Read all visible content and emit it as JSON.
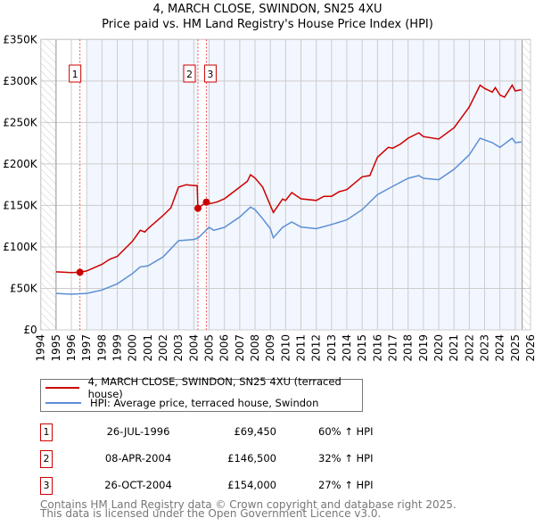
{
  "chart_data": {
    "type": "line",
    "title": "4, MARCH CLOSE, SWINDON, SN25 4XU",
    "subtitle": "Price paid vs. HM Land Registry's House Price Index (HPI)",
    "xlim": [
      1994,
      2026
    ],
    "ylim": [
      0,
      350000
    ],
    "x_ticks": [
      "1994",
      "1995",
      "1996",
      "1997",
      "1998",
      "1999",
      "2000",
      "2001",
      "2002",
      "2003",
      "2004",
      "2005",
      "2006",
      "2007",
      "2008",
      "2009",
      "2010",
      "2011",
      "2012",
      "2013",
      "2014",
      "2015",
      "2016",
      "2017",
      "2018",
      "2019",
      "2020",
      "2021",
      "2022",
      "2023",
      "2024",
      "2025",
      "2026"
    ],
    "y_ticks": [
      {
        "v": 0,
        "label": "£0"
      },
      {
        "v": 50000,
        "label": "£50K"
      },
      {
        "v": 100000,
        "label": "£100K"
      },
      {
        "v": 150000,
        "label": "£150K"
      },
      {
        "v": 200000,
        "label": "£200K"
      },
      {
        "v": 250000,
        "label": "£250K"
      },
      {
        "v": 300000,
        "label": "£300K"
      },
      {
        "v": 350000,
        "label": "£350K"
      }
    ],
    "grid": true,
    "series": [
      {
        "name": "4, MARCH CLOSE, SWINDON, SN25 4XU (terraced house)",
        "color": "#cc0000",
        "x": [
          1995,
          1996,
          1996.56,
          1997,
          1998,
          1998.5,
          1999,
          2000,
          2000.5,
          2000.8,
          2001,
          2002,
          2002.5,
          2003,
          2003.5,
          2004,
          2004.22,
          2004.27,
          2004.82,
          2005,
          2005.5,
          2006,
          2007,
          2007.5,
          2007.7,
          2008,
          2008.5,
          2009,
          2009.2,
          2009.8,
          2010,
          2010.4,
          2011,
          2012,
          2012.5,
          2013,
          2013.5,
          2014,
          2015,
          2015.5,
          2016,
          2016.7,
          2017,
          2017.5,
          2018,
          2018.7,
          2019,
          2020,
          2021,
          2022,
          2022.7,
          2023,
          2023.5,
          2023.7,
          2024,
          2024.3,
          2024.8,
          2025,
          2025.4
        ],
        "y": [
          70000,
          69000,
          69450,
          71000,
          79000,
          85000,
          88500,
          107000,
          120000,
          118000,
          122000,
          138000,
          147000,
          172000,
          175000,
          174000,
          174000,
          146500,
          154000,
          152000,
          154000,
          158000,
          172000,
          179000,
          187000,
          183000,
          172000,
          150000,
          141500,
          157600,
          156000,
          165500,
          158000,
          156000,
          161000,
          161000,
          166600,
          169000,
          184500,
          186000,
          208000,
          220000,
          219000,
          224000,
          231000,
          237500,
          233000,
          230000,
          243600,
          268700,
          295000,
          291000,
          286600,
          292000,
          283000,
          280500,
          295000,
          288000,
          289500
        ]
      },
      {
        "name": "HPI: Average price, terraced house, Swindon",
        "color": "#5b8fd4",
        "x": [
          1995,
          1996,
          1997,
          1998,
          1999,
          2000,
          2000.5,
          2001,
          2002,
          2003,
          2004,
          2004.3,
          2005,
          2005.3,
          2006,
          2007,
          2007.7,
          2008,
          2008.5,
          2009,
          2009.2,
          2009.8,
          2010.4,
          2011,
          2012,
          2013,
          2014,
          2015,
          2016,
          2017,
          2018,
          2018.7,
          2019,
          2020,
          2021,
          2022,
          2022.7,
          2023,
          2023.5,
          2024,
          2024.8,
          2025,
          2025.4
        ],
        "y": [
          44000,
          43000,
          44000,
          48000,
          55500,
          68000,
          76000,
          77000,
          88000,
          107500,
          109000,
          111000,
          123600,
          120000,
          123600,
          136000,
          148000,
          145000,
          134000,
          122000,
          111000,
          123600,
          130000,
          124000,
          122000,
          127000,
          132600,
          145000,
          163000,
          173000,
          182700,
          186000,
          182700,
          181000,
          193500,
          211000,
          231000,
          229000,
          225700,
          220000,
          231000,
          225700,
          226500
        ]
      }
    ],
    "sales": [
      {
        "id": "1",
        "x": 1996.56,
        "y": 69450
      },
      {
        "id": "2",
        "x": 2004.27,
        "y": 146500
      },
      {
        "id": "3",
        "x": 2004.82,
        "y": 154000
      }
    ],
    "legend_position": "bottom"
  },
  "legend": {
    "property": "4, MARCH CLOSE, SWINDON, SN25 4XU (terraced house)",
    "hpi": "HPI: Average price, terraced house, Swindon"
  },
  "transactions": [
    {
      "id": "1",
      "date": "26-JUL-1996",
      "price": "£69,450",
      "hpi": "60% ↑ HPI"
    },
    {
      "id": "2",
      "date": "08-APR-2004",
      "price": "£146,500",
      "hpi": "32% ↑ HPI"
    },
    {
      "id": "3",
      "date": "26-OCT-2004",
      "price": "£154,000",
      "hpi": "27% ↑ HPI"
    }
  ],
  "footer": {
    "line1": "Contains HM Land Registry data © Crown copyright and database right 2025.",
    "line2": "This data is licensed under the Open Government Licence v3.0."
  }
}
